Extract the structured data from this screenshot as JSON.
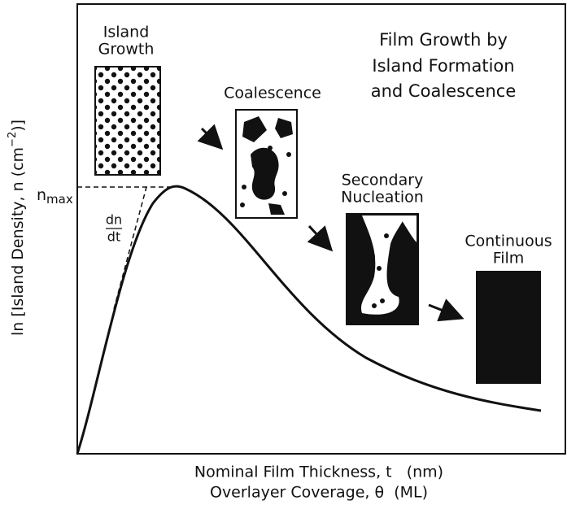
{
  "title": [
    "Film Growth by",
    "Island Formation",
    "and Coalescence"
  ],
  "stages": [
    {
      "label": [
        "Island",
        "Growth"
      ]
    },
    {
      "label": [
        "Coalescence"
      ]
    },
    {
      "label": [
        "Secondary",
        "Nucleation"
      ]
    },
    {
      "label": [
        "Continuous",
        "Film"
      ]
    }
  ],
  "n_max": {
    "symbol": "n",
    "subscript": "max"
  },
  "slope": {
    "numerator": "dn",
    "denominator": "dt"
  },
  "y_axis_label": {
    "before": "ln [Island Density, n (cm",
    "superscript": "−2",
    "after": ")]"
  },
  "x_axis_label": [
    "Nominal Film Thickness, t   (nm)",
    "Overlayer Coverage, θ  (ML)"
  ]
}
